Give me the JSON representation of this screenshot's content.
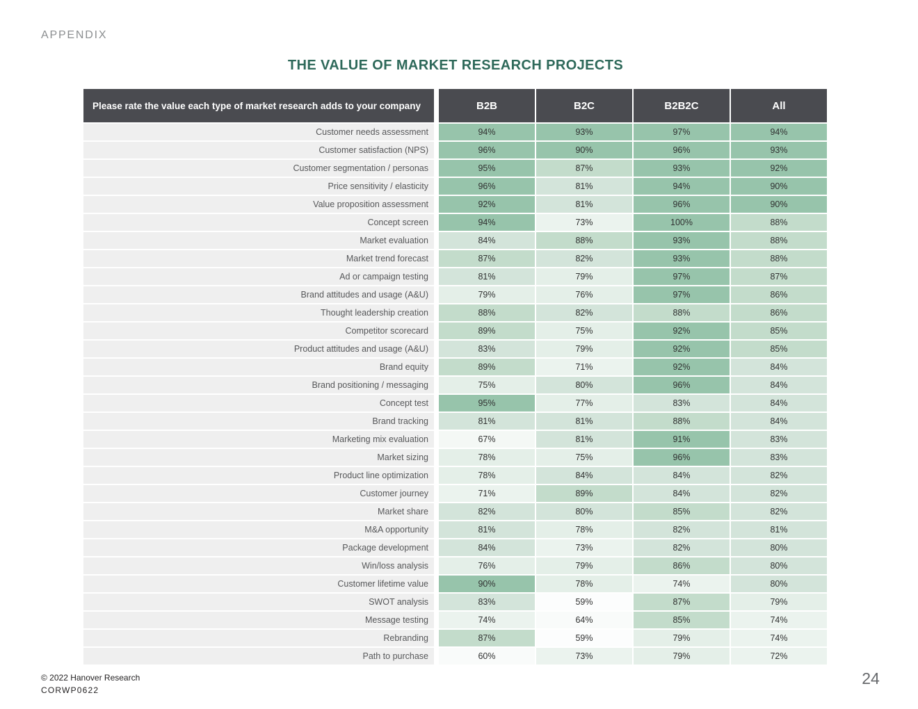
{
  "page": {
    "appendix_label": "APPENDIX",
    "title": "THE VALUE OF MARKET RESEARCH PROJECTS",
    "page_number": "24",
    "footer": {
      "copyright": "© 2022 Hanover Research",
      "code": "CORWP0622"
    }
  },
  "colors": {
    "header_bg": "#4a4b50",
    "header_text": "#ffffff",
    "row_label_bg": "#efefef",
    "row_label_text": "#565759",
    "value_text": "#303131",
    "title_text": "#2e695a",
    "appendix_text": "#8b8e90"
  },
  "heatmap_bins": [
    {
      "min": 90,
      "color": "#97c4ab"
    },
    {
      "min": 85,
      "color": "#c3dccb"
    },
    {
      "min": 80,
      "color": "#d3e4da"
    },
    {
      "min": 75,
      "color": "#e4efe8"
    },
    {
      "min": 70,
      "color": "#ebf3ee"
    },
    {
      "min": 65,
      "color": "#f4f8f5"
    },
    {
      "min": 60,
      "color": "#f9fbfa"
    },
    {
      "min": 0,
      "color": "#fcfdfd"
    }
  ],
  "chart_data": {
    "type": "heatmap",
    "title": "THE VALUE OF MARKET RESEARCH PROJECTS",
    "row_header": "Please rate the value each type of market research adds to your company",
    "columns": [
      "B2B",
      "B2C",
      "B2B2C",
      "All"
    ],
    "unit": "%",
    "color_scale": {
      "low_color": "#fcfdfd",
      "high_color": "#97c4ab",
      "domain": [
        59,
        100
      ],
      "legend": "off"
    },
    "rows": [
      {
        "label": "Customer needs assessment",
        "values": [
          94,
          93,
          97,
          94
        ]
      },
      {
        "label": "Customer satisfaction (NPS)",
        "values": [
          96,
          90,
          96,
          93
        ]
      },
      {
        "label": "Customer segmentation / personas",
        "values": [
          95,
          87,
          93,
          92
        ]
      },
      {
        "label": "Price sensitivity / elasticity",
        "values": [
          96,
          81,
          94,
          90
        ]
      },
      {
        "label": "Value proposition assessment",
        "values": [
          92,
          81,
          96,
          90
        ]
      },
      {
        "label": "Concept screen",
        "values": [
          94,
          73,
          100,
          88
        ]
      },
      {
        "label": "Market evaluation",
        "values": [
          84,
          88,
          93,
          88
        ]
      },
      {
        "label": "Market trend forecast",
        "values": [
          87,
          82,
          93,
          88
        ]
      },
      {
        "label": "Ad or campaign testing",
        "values": [
          81,
          79,
          97,
          87
        ]
      },
      {
        "label": "Brand attitudes and usage (A&U)",
        "values": [
          79,
          76,
          97,
          86
        ]
      },
      {
        "label": "Thought leadership creation",
        "values": [
          88,
          82,
          88,
          86
        ]
      },
      {
        "label": "Competitor scorecard",
        "values": [
          89,
          75,
          92,
          85
        ]
      },
      {
        "label": "Product attitudes and usage (A&U)",
        "values": [
          83,
          79,
          92,
          85
        ]
      },
      {
        "label": "Brand equity",
        "values": [
          89,
          71,
          92,
          84
        ]
      },
      {
        "label": "Brand positioning / messaging",
        "values": [
          75,
          80,
          96,
          84
        ]
      },
      {
        "label": "Concept test",
        "values": [
          95,
          77,
          83,
          84
        ]
      },
      {
        "label": "Brand tracking",
        "values": [
          81,
          81,
          88,
          84
        ]
      },
      {
        "label": "Marketing mix evaluation",
        "values": [
          67,
          81,
          91,
          83
        ]
      },
      {
        "label": "Market sizing",
        "values": [
          78,
          75,
          96,
          83
        ]
      },
      {
        "label": "Product line optimization",
        "values": [
          78,
          84,
          84,
          82
        ]
      },
      {
        "label": "Customer journey",
        "values": [
          71,
          89,
          84,
          82
        ]
      },
      {
        "label": "Market share",
        "values": [
          82,
          80,
          85,
          82
        ]
      },
      {
        "label": "M&A opportunity",
        "values": [
          81,
          78,
          82,
          81
        ]
      },
      {
        "label": "Package development",
        "values": [
          84,
          73,
          82,
          80
        ]
      },
      {
        "label": "Win/loss analysis",
        "values": [
          76,
          79,
          86,
          80
        ]
      },
      {
        "label": "Customer lifetime value",
        "values": [
          90,
          78,
          74,
          80
        ]
      },
      {
        "label": "SWOT analysis",
        "values": [
          83,
          59,
          87,
          79
        ]
      },
      {
        "label": "Message testing",
        "values": [
          74,
          64,
          85,
          74
        ]
      },
      {
        "label": "Rebranding",
        "values": [
          87,
          59,
          79,
          74
        ]
      },
      {
        "label": "Path to purchase",
        "values": [
          60,
          73,
          79,
          72
        ]
      }
    ]
  }
}
